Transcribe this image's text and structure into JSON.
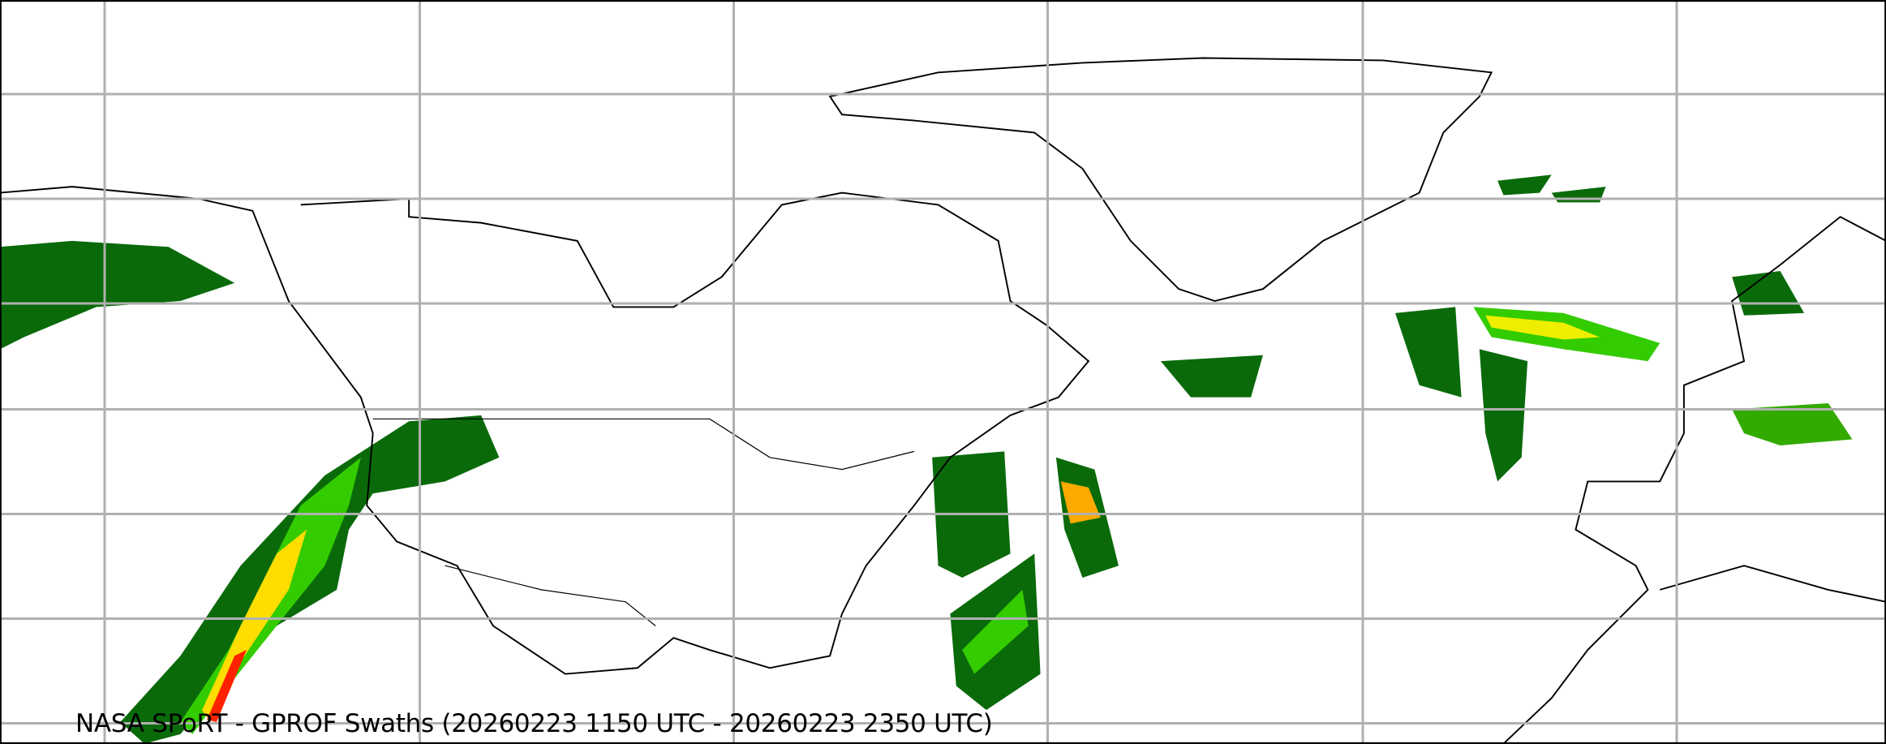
{
  "map": {
    "caption": "NASA SPoRT - GPROF Swaths (20260223 1150 UTC - 20260223 2350 UTC)",
    "colors": {
      "light_rain": "#006400",
      "moderate_rain": "#22cc00",
      "heavy_rain": "#ffff00",
      "very_heavy_rain": "#ff0000",
      "gridline": "#b0b0b0",
      "coastline": "#000000"
    },
    "gridlines": true
  }
}
